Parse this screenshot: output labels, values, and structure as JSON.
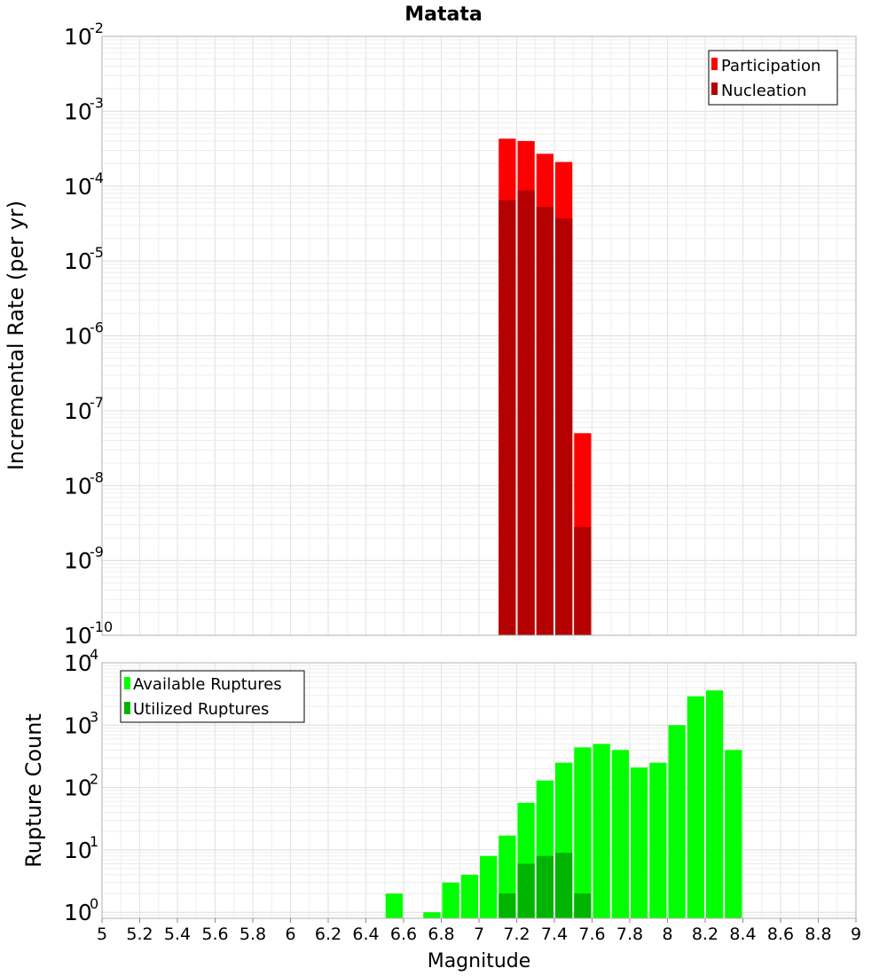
{
  "chart_data": [
    {
      "type": "bar",
      "title": "Matata",
      "xlabel": "",
      "ylabel": "Incremental Rate (per yr)",
      "yscale": "log",
      "ylim": [
        1e-10,
        0.01
      ],
      "xlim": [
        5,
        9
      ],
      "grid": true,
      "legend": "top-right",
      "bar_width": 0.1,
      "x": [
        7.15,
        7.25,
        7.35,
        7.45,
        7.55
      ],
      "series": [
        {
          "name": "Participation",
          "color": "#ff0000",
          "values": [
            0.00043,
            0.0004,
            0.00027,
            0.00021,
            5e-08
          ]
        },
        {
          "name": "Nucleation",
          "color": "#b40000",
          "values": [
            6.5e-05,
            8.8e-05,
            5.3e-05,
            3.7e-05,
            2.8e-09
          ]
        }
      ]
    },
    {
      "type": "bar",
      "title": "",
      "xlabel": "Magnitude",
      "ylabel": "Rupture Count",
      "yscale": "log",
      "ylim": [
        0.8,
        10000
      ],
      "xlim": [
        5,
        9
      ],
      "xticks": [
        "5",
        "5.2",
        "5.4",
        "5.6",
        "5.8",
        "6",
        "6.2",
        "6.4",
        "6.6",
        "6.8",
        "7",
        "7.2",
        "7.4",
        "7.6",
        "7.8",
        "8",
        "8.2",
        "8.4",
        "8.6",
        "8.8",
        "9"
      ],
      "grid": true,
      "legend": "top-left",
      "bar_width": 0.1,
      "series": [
        {
          "name": "Available Ruptures",
          "color": "#00ff00",
          "x": [
            6.55,
            6.75,
            6.85,
            6.95,
            7.05,
            7.15,
            7.25,
            7.35,
            7.45,
            7.55,
            7.65,
            7.75,
            7.85,
            7.95,
            8.05,
            8.15,
            8.25,
            8.35
          ],
          "values": [
            2,
            1,
            3,
            4,
            8,
            17,
            57,
            130,
            250,
            440,
            500,
            400,
            210,
            250,
            1000,
            2900,
            3600,
            400
          ]
        },
        {
          "name": "Utilized Ruptures",
          "color": "#00b400",
          "x": [
            7.15,
            7.25,
            7.35,
            7.45,
            7.55
          ],
          "values": [
            2,
            6,
            8,
            9,
            2
          ]
        }
      ]
    }
  ]
}
